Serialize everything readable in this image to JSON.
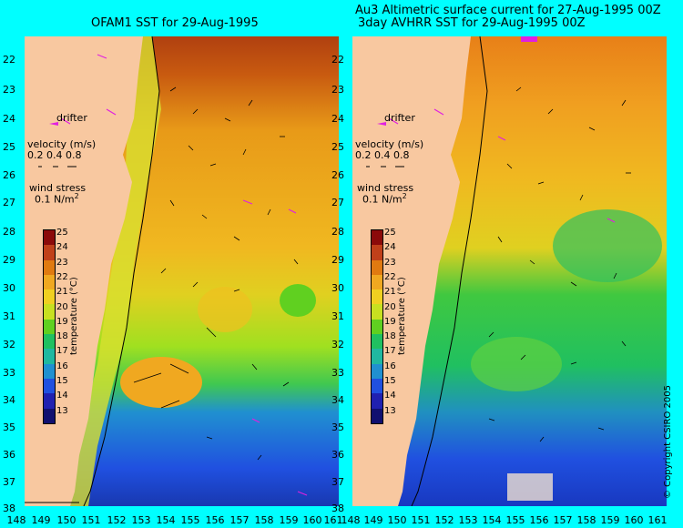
{
  "titles": {
    "left": "OFAM1 SST for 29-Aug-1995",
    "right_line1": "Au3 Altimetric surface current for 27-Aug-1995 00Z",
    "right_line2": "3day AVHRR SST for 29-Aug-1995 00Z"
  },
  "axes": {
    "lat_labels": [
      "22",
      "23",
      "24",
      "25",
      "26",
      "27",
      "28",
      "29",
      "30",
      "31",
      "32",
      "33",
      "34",
      "35",
      "36",
      "37",
      "38"
    ],
    "lon_labels": [
      "148",
      "149",
      "150",
      "151",
      "152",
      "153",
      "154",
      "155",
      "156",
      "157",
      "158",
      "159",
      "160",
      "161"
    ]
  },
  "legend": {
    "drifter": "drifter",
    "velocity_title": "velocity (m/s)",
    "velocity_scale": "0.2 0.4 0.8",
    "wind_title": "wind stress",
    "wind_scale": "0.1 N/m",
    "wind_sup": "2"
  },
  "colorbar": {
    "title": "temperature (°C)",
    "labels": [
      "25",
      "24",
      "23",
      "22",
      "21",
      "20",
      "19",
      "18",
      "17",
      "16",
      "15",
      "14",
      "13"
    ],
    "colors": [
      "#8b0a0a",
      "#c0401a",
      "#e07a10",
      "#f0a820",
      "#f0d020",
      "#c8e020",
      "#60d020",
      "#20c060",
      "#20b8a0",
      "#2090d0",
      "#2050e0",
      "#2020b0",
      "#101070"
    ]
  },
  "map_colors": {
    "land": "#f8c8a0",
    "outside": "#00ffff"
  },
  "copyright": "© Copyright CSIRO 2005"
}
